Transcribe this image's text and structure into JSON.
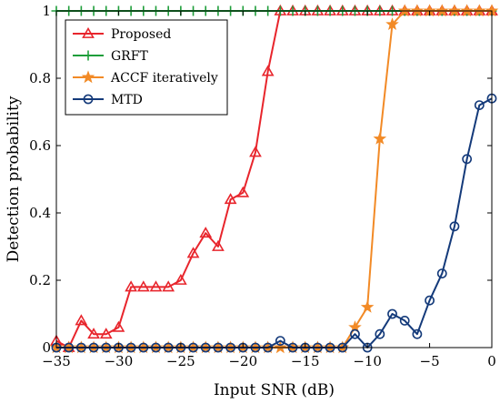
{
  "chart_data": {
    "type": "line",
    "title": "",
    "xlabel": "Input SNR (dB)",
    "ylabel": "Detection probability",
    "xlim": [
      -35,
      0
    ],
    "ylim": [
      0,
      1
    ],
    "xticks": [
      -35,
      -30,
      -25,
      -20,
      -15,
      -10,
      -5,
      0
    ],
    "yticks": [
      0,
      0.2,
      0.4,
      0.6,
      0.8,
      1
    ],
    "xtick_labels": [
      "−35",
      "−30",
      "−25",
      "−20",
      "−15",
      "−10",
      "−5",
      "0"
    ],
    "ytick_labels": [
      "0",
      "0.2",
      "0.4",
      "0.6",
      "0.8",
      "1"
    ],
    "grid": false,
    "legend_position": "top-left",
    "x": [
      -35,
      -34,
      -33,
      -32,
      -31,
      -30,
      -29,
      -28,
      -27,
      -26,
      -25,
      -24,
      -23,
      -22,
      -21,
      -20,
      -19,
      -18,
      -17,
      -16,
      -15,
      -14,
      -13,
      -12,
      -11,
      -10,
      -9,
      -8,
      -7,
      -6,
      -5,
      -4,
      -3,
      -2,
      -1,
      0
    ],
    "series": [
      {
        "name": "Proposed",
        "color": "#e8252c",
        "marker": "triangle",
        "values": [
          0.02,
          0.0,
          0.08,
          0.04,
          0.04,
          0.06,
          0.18,
          0.18,
          0.18,
          0.18,
          0.2,
          0.28,
          0.34,
          0.3,
          0.44,
          0.46,
          0.58,
          0.82,
          1.0,
          1.0,
          1.0,
          1.0,
          1.0,
          1.0,
          1.0,
          1.0,
          1.0,
          1.0,
          1.0,
          1.0,
          1.0,
          1.0,
          1.0,
          1.0,
          1.0,
          1.0
        ]
      },
      {
        "name": "GRFT",
        "color": "#1e9e3a",
        "marker": "plus",
        "values": [
          1,
          1,
          1,
          1,
          1,
          1,
          1,
          1,
          1,
          1,
          1,
          1,
          1,
          1,
          1,
          1,
          1,
          1,
          1,
          1,
          1,
          1,
          1,
          1,
          1,
          1,
          1,
          1,
          1,
          1,
          1,
          1,
          1,
          1,
          1,
          1
        ]
      },
      {
        "name": "ACCF iteratively",
        "color": "#f28a26",
        "marker": "star",
        "values": [
          0,
          0,
          0,
          0,
          0,
          0,
          0,
          0,
          0,
          0,
          0,
          0,
          0,
          0,
          0,
          0,
          0,
          0,
          0,
          0,
          0,
          0,
          0,
          0,
          0.06,
          0.12,
          0.62,
          0.96,
          1.0,
          1.0,
          1.0,
          1.0,
          1.0,
          1.0,
          1.0,
          1.0
        ]
      },
      {
        "name": "MTD",
        "color": "#143a7a",
        "marker": "circle",
        "values": [
          0,
          0,
          0,
          0,
          0,
          0,
          0,
          0,
          0,
          0,
          0,
          0,
          0,
          0,
          0,
          0,
          0,
          0,
          0.02,
          0,
          0,
          0,
          0,
          0,
          0.04,
          0,
          0.04,
          0.1,
          0.08,
          0.04,
          0.14,
          0.22,
          0.36,
          0.56,
          0.72,
          0.74
        ]
      }
    ]
  }
}
